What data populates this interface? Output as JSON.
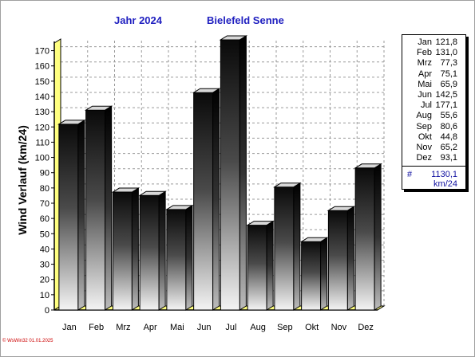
{
  "chart_data": {
    "type": "bar",
    "title_year": "Jahr  2024",
    "title_station": "Bielefeld Senne",
    "ylabel": "Wind Verlauf  (km/24)",
    "categories": [
      "Jan",
      "Feb",
      "Mrz",
      "Apr",
      "Mai",
      "Jun",
      "Jul",
      "Aug",
      "Sep",
      "Okt",
      "Nov",
      "Dez"
    ],
    "values": [
      121.8,
      131.0,
      77.3,
      75.1,
      65.9,
      142.5,
      177.1,
      55.6,
      80.6,
      44.8,
      65.2,
      93.1
    ],
    "value_labels": [
      "121,8",
      "131,0",
      "77,3",
      "75,1",
      "65,9",
      "142,5",
      "177,1",
      "55,6",
      "80,6",
      "44,8",
      "65,2",
      "93,1"
    ],
    "ylim": [
      0,
      175
    ],
    "yticks": [
      0,
      10,
      20,
      30,
      40,
      50,
      60,
      70,
      80,
      90,
      100,
      110,
      120,
      130,
      140,
      150,
      160,
      170
    ],
    "grid": true,
    "legend_position": "right"
  },
  "legend": {
    "total_mark": "#",
    "total_value": "1130,1",
    "total_unit": "km/24"
  },
  "footer": {
    "text": "© WsWin32  01.01.2025"
  },
  "colors": {
    "bar_dark": "#0a0a0a",
    "bar_light": "#f4f4f4",
    "floor_yellow": "#ffff80",
    "title_blue": "#2020c0",
    "footer_red": "#cc0000"
  }
}
